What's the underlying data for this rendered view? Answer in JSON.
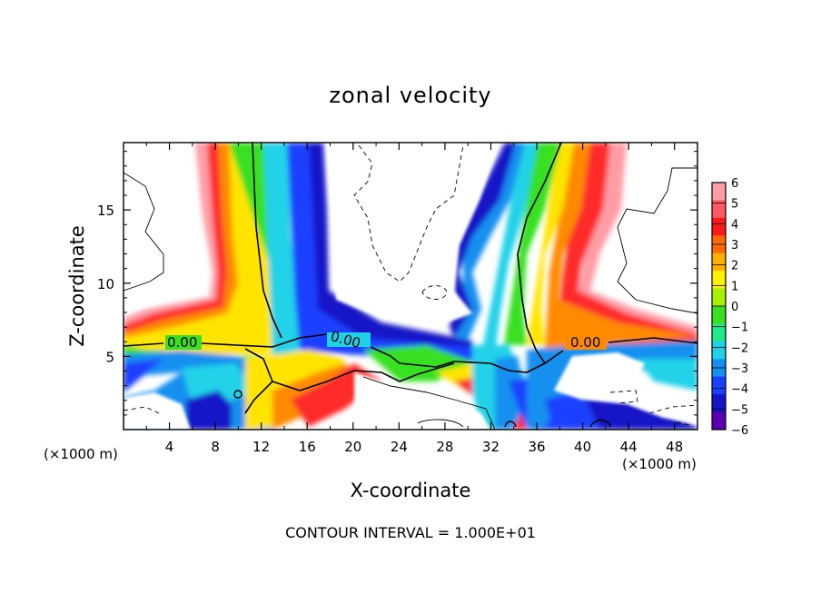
{
  "chart_data": {
    "type": "heatmap",
    "title": "zonal velocity",
    "xlabel": "X-coordinate",
    "ylabel": "Z-coordinate",
    "x_unit_label": "(×1000 m)",
    "x_unit_label_right": "(×1000 m)",
    "xlim": [
      0,
      50
    ],
    "ylim": [
      0,
      19.6
    ],
    "x_ticks": [
      "4",
      "8",
      "12",
      "16",
      "20",
      "24",
      "28",
      "32",
      "36",
      "40",
      "44",
      "48"
    ],
    "y_ticks": [
      "5",
      "10",
      "15"
    ],
    "colorbar": {
      "range": [
        -6,
        6
      ],
      "labels": [
        "6",
        "5",
        "4",
        "3",
        "2",
        "1",
        "0",
        "−1",
        "−2",
        "−3",
        "−4",
        "−5",
        "−6"
      ],
      "colors": [
        "#ff9da6",
        "#ff5a64",
        "#ff1a1a",
        "#ff6a00",
        "#ffb000",
        "#fff000",
        "#a8f000",
        "#38e020",
        "#20e88c",
        "#20d2e8",
        "#1490f0",
        "#1a40ff",
        "#1414c8",
        "#5a00b4"
      ]
    },
    "contour_labels": [
      "0.00",
      "0.00",
      "0.00"
    ],
    "footer": "CONTOUR INTERVAL = 1.000E+01",
    "grid": false
  }
}
